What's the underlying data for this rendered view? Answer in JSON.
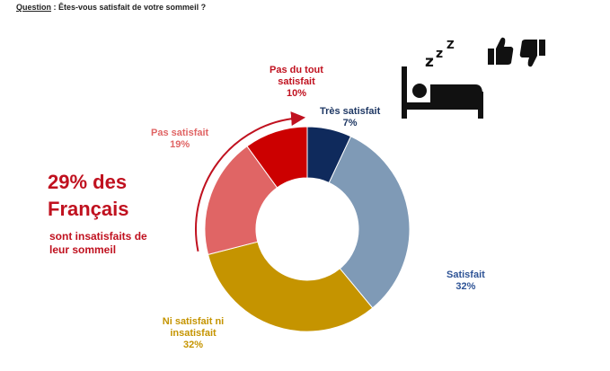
{
  "question": {
    "label": "Question",
    "text": " : Êtes-vous satisfait de votre sommeil ?"
  },
  "callout": {
    "line1": "29% des",
    "line2": "Français",
    "line3": "sont insatisfaits de",
    "line4": "leur sommeil"
  },
  "chart_data": {
    "type": "pie",
    "donut": true,
    "categories": [
      "Très satisfait",
      "Satisfait",
      "Ni satisfait ni insatisfait",
      "Pas satisfait",
      "Pas du tout satisfait"
    ],
    "values": [
      7,
      32,
      32,
      19,
      10
    ],
    "value_labels": [
      "7%",
      "32%",
      "32%",
      "19%",
      "10%"
    ],
    "colors": [
      "#0f2a5c",
      "#7f9ab6",
      "#c59400",
      "#e06565",
      "#cc0000"
    ],
    "label_colors": [
      "#1f3864",
      "#2f5496",
      "#c59400",
      "#e06565",
      "#c0111f"
    ]
  },
  "icons": [
    "bed-sleep-icon",
    "thumbs-up-icon",
    "thumbs-down-icon"
  ]
}
